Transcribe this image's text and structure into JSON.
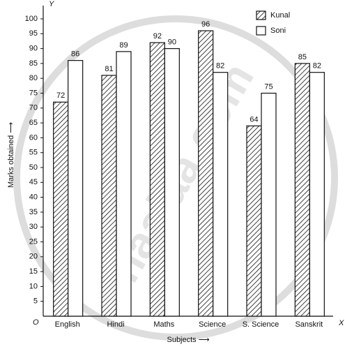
{
  "chart_data": {
    "type": "bar",
    "categories": [
      "English",
      "Hindi",
      "Maths",
      "Science",
      "S. Science",
      "Sanskrit"
    ],
    "series": [
      {
        "name": "Kunal",
        "color": "#111111",
        "hatched": true,
        "values": [
          72,
          81,
          92,
          96,
          64,
          85
        ]
      },
      {
        "name": "Soni",
        "color": "#111111",
        "hatched": false,
        "values": [
          86,
          89,
          90,
          82,
          75,
          82
        ]
      }
    ],
    "ylim": [
      0,
      100
    ],
    "yticks": [
      5,
      10,
      15,
      20,
      25,
      30,
      35,
      40,
      45,
      50,
      55,
      60,
      65,
      70,
      75,
      80,
      85,
      90,
      95,
      100
    ],
    "x_label": "Subjects ⟶",
    "y_label": "Marks obtained ⟶",
    "origin_label": "O",
    "x_axis_name": "X",
    "y_axis_name": "Y",
    "watermark": "shaalaa.com",
    "legend": "top-right"
  }
}
